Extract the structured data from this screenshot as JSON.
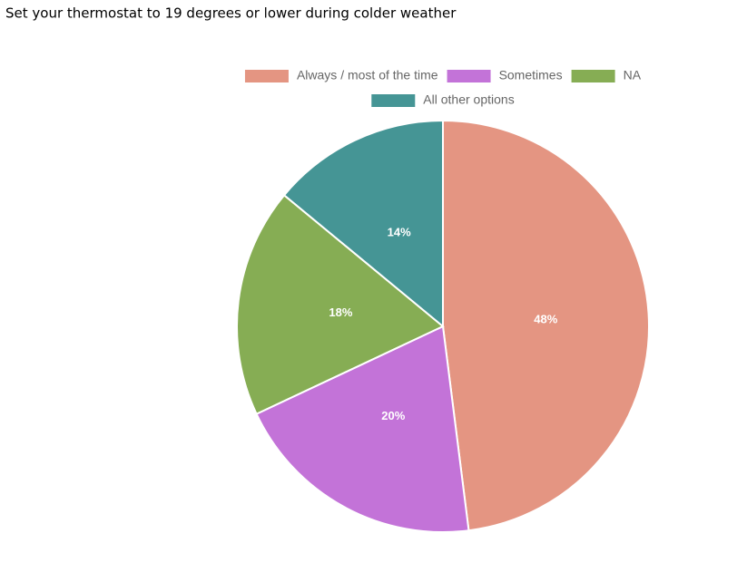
{
  "chart_data": {
    "type": "pie",
    "title": "Set your thermostat to 19 degrees or lower during colder weather",
    "categories": [
      "Always / most of the time",
      "Sometimes",
      "NA",
      "All other options"
    ],
    "values": [
      48,
      20,
      18,
      14
    ],
    "value_labels": [
      "48%",
      "20%",
      "18%",
      "14%"
    ],
    "colors": [
      "#e49582",
      "#c373d8",
      "#86ad54",
      "#459595"
    ],
    "legend": "top"
  }
}
